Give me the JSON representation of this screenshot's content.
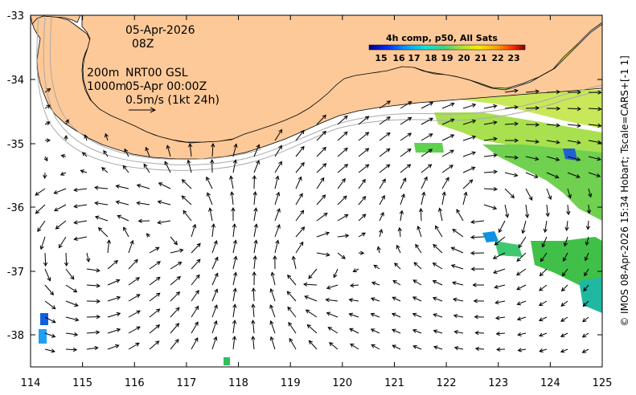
{
  "map": {
    "date": "05-Apr-2026",
    "time": "08Z",
    "depth_line_1": "200m",
    "depth_line_2": "1000m",
    "product": "NRT00 GSL",
    "product_time": "05-Apr 00:00Z",
    "scale_label": "0.5m/s (1kt 24h)",
    "credit": "© IMOS 08-Apr-2026 15:34 Hobart; Tscale=CARS+[-1 1]",
    "land_color": "#fdc998",
    "axes": {
      "lon_range": [
        114,
        125
      ],
      "lat_range": [
        -38.5,
        -33
      ],
      "lon_ticks": [
        "114",
        "115",
        "116",
        "117",
        "118",
        "119",
        "120",
        "121",
        "122",
        "123",
        "124",
        "125"
      ],
      "lat_ticks": [
        "-33",
        "-34",
        "-35",
        "-36",
        "-37",
        "-38"
      ]
    }
  },
  "colorbar": {
    "title": "4h comp, p50, All Sats",
    "labels": [
      "15",
      "16",
      "17",
      "18",
      "19",
      "20",
      "21",
      "22",
      "23"
    ],
    "colors": [
      "#00008f",
      "#0030ff",
      "#00a0ff",
      "#10e0e0",
      "#40d080",
      "#a0e040",
      "#f0f000",
      "#ffa000",
      "#ff3000",
      "#800000"
    ]
  }
}
